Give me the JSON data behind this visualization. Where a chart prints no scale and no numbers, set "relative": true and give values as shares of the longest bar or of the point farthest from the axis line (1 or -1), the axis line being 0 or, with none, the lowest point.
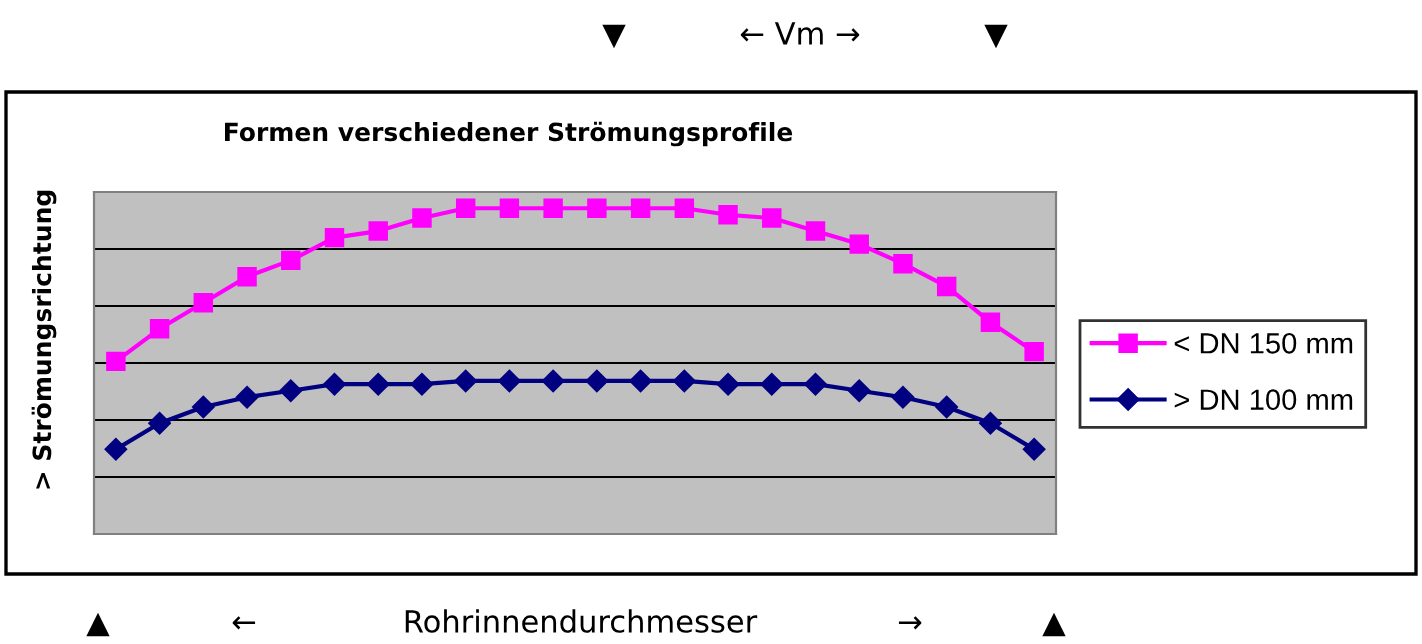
{
  "chart_data": {
    "type": "line",
    "title": "Formen verschiedener Strömungsprofile",
    "ylabel": "> Strömungsrichtung",
    "xlabel": "Rohrinnendurchmesser",
    "annotations": [
      "▼",
      "← Vm →",
      "▼",
      "▲",
      "←",
      "→",
      "▲"
    ],
    "relative": true,
    "grid": "y",
    "legend": "right",
    "categories": [
      null,
      null,
      null,
      null,
      null,
      null,
      null,
      null,
      null,
      null,
      null,
      null,
      null,
      null,
      null,
      null,
      null,
      null,
      null,
      null,
      null,
      null
    ],
    "series": [
      {
        "name": "< DN 150 mm",
        "color": "#ff00ff",
        "marker": "square",
        "values": [
          0.53,
          0.63,
          0.71,
          0.79,
          0.84,
          0.91,
          0.93,
          0.97,
          1,
          1,
          1,
          1,
          1,
          1,
          0.98,
          0.97,
          0.93,
          0.89,
          0.83,
          0.76,
          0.65,
          0.56
        ]
      },
      {
        "name": "> DN 100 mm",
        "color": "#000080",
        "marker": "diamond",
        "values": [
          0.26,
          0.34,
          0.39,
          0.42,
          0.44,
          0.46,
          0.46,
          0.46,
          0.47,
          0.47,
          0.47,
          0.47,
          0.47,
          0.47,
          0.46,
          0.46,
          0.46,
          0.44,
          0.42,
          0.39,
          0.34,
          0.26
        ]
      }
    ]
  }
}
